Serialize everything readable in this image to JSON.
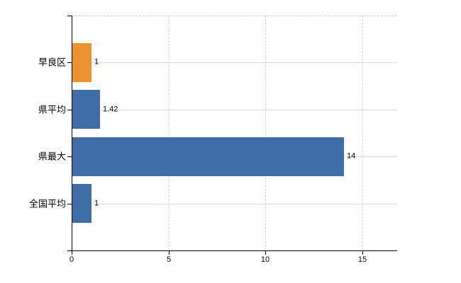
{
  "chart_data": {
    "type": "bar",
    "orientation": "horizontal",
    "title": "",
    "xlabel": "",
    "ylabel": "",
    "categories": [
      "早良区",
      "県平均",
      "県最大",
      "全国平均"
    ],
    "values": [
      1,
      1.42,
      14,
      1
    ],
    "data_labels": [
      "1",
      "1.42",
      "14",
      "1"
    ],
    "bar_colors": [
      "#EC9231",
      "#3F6EA6",
      "#3F6EA6",
      "#3F6EA6"
    ],
    "x_ticks": [
      0,
      5,
      10,
      15
    ],
    "x_tick_labels": [
      "0",
      "5",
      "10",
      "15"
    ],
    "xlim": [
      0,
      16.8
    ],
    "grid": true,
    "legend": false,
    "colors": {
      "axis": "#000000",
      "h_gridline": "#d5dbd5",
      "v_gridline": "#d2d7d2",
      "plot_top_border": "#c9cec9",
      "text": "#000000",
      "background": "#ffffff"
    }
  }
}
